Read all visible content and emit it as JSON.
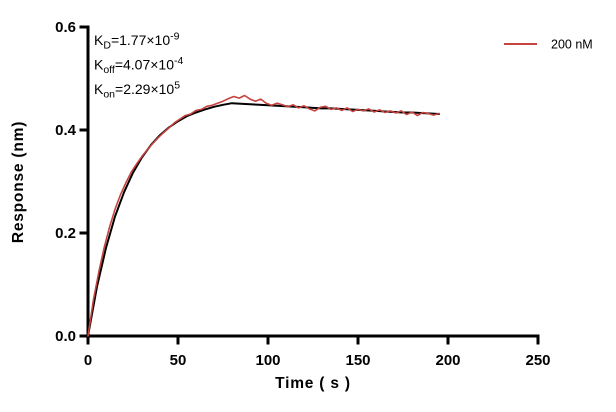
{
  "chart_data": {
    "type": "line",
    "title": "",
    "xlabel": "Time ( s )",
    "ylabel": "Response (nm)",
    "xlim": [
      0,
      250
    ],
    "ylim": [
      0,
      0.6
    ],
    "grid": false,
    "x_ticks": [
      0,
      50,
      100,
      150,
      200,
      250
    ],
    "x_tick_labels": [
      "0",
      "50",
      "100",
      "150",
      "200",
      "250"
    ],
    "y_ticks": [
      0,
      0.2,
      0.4,
      0.6
    ],
    "y_tick_labels": [
      "0.0",
      "0.2",
      "0.4",
      "0.6"
    ],
    "legend_position": "top-right",
    "legend": [
      {
        "label": "200 nM",
        "color": "#c5443f"
      }
    ],
    "kinetic_constants": {
      "KD": "1.77×10-9",
      "Koff": "4.07×10-4",
      "Kon": "2.29×105"
    },
    "annotations": [
      {
        "segments": [
          {
            "t": "K"
          },
          {
            "t": "D",
            "s": "sub"
          },
          {
            "t": "=1.77×10"
          },
          {
            "t": "-9",
            "s": "sup"
          }
        ]
      },
      {
        "segments": [
          {
            "t": "K"
          },
          {
            "t": "off",
            "s": "sub"
          },
          {
            "t": "=4.07×10"
          },
          {
            "t": "-4",
            "s": "sup"
          }
        ]
      },
      {
        "segments": [
          {
            "t": "K"
          },
          {
            "t": "on",
            "s": "sub"
          },
          {
            "t": "=2.29×10"
          },
          {
            "t": "5",
            "s": "sup"
          }
        ]
      }
    ],
    "series": [
      {
        "role": "fit",
        "label": "",
        "color": "#000000",
        "width": 2,
        "points": [
          [
            0,
            0
          ],
          [
            5,
            0.096
          ],
          [
            10,
            0.171
          ],
          [
            15,
            0.232
          ],
          [
            20,
            0.279
          ],
          [
            25,
            0.317
          ],
          [
            30,
            0.347
          ],
          [
            35,
            0.371
          ],
          [
            40,
            0.39
          ],
          [
            45,
            0.405
          ],
          [
            50,
            0.417
          ],
          [
            55,
            0.427
          ],
          [
            60,
            0.434
          ],
          [
            65,
            0.44
          ],
          [
            70,
            0.445
          ],
          [
            75,
            0.449
          ],
          [
            80,
            0.452
          ],
          [
            85,
            0.451
          ],
          [
            90,
            0.45
          ],
          [
            95,
            0.449
          ],
          [
            100,
            0.448
          ],
          [
            105,
            0.447
          ],
          [
            110,
            0.446
          ],
          [
            115,
            0.445
          ],
          [
            120,
            0.444
          ],
          [
            125,
            0.443
          ],
          [
            130,
            0.442
          ],
          [
            135,
            0.442
          ],
          [
            140,
            0.441
          ],
          [
            145,
            0.44
          ],
          [
            150,
            0.439
          ],
          [
            155,
            0.438
          ],
          [
            160,
            0.437
          ],
          [
            165,
            0.436
          ],
          [
            170,
            0.435
          ],
          [
            175,
            0.434
          ],
          [
            180,
            0.434
          ],
          [
            185,
            0.433
          ],
          [
            190,
            0.432
          ],
          [
            195,
            0.431
          ]
        ]
      },
      {
        "role": "data",
        "label": "200 nM",
        "color": "#c5443f",
        "width": 1.6,
        "points": [
          [
            0,
            0
          ],
          [
            3,
            0.07
          ],
          [
            6,
            0.124
          ],
          [
            9,
            0.172
          ],
          [
            12,
            0.212
          ],
          [
            15,
            0.246
          ],
          [
            18,
            0.274
          ],
          [
            21,
            0.297
          ],
          [
            24,
            0.318
          ],
          [
            27,
            0.334
          ],
          [
            30,
            0.349
          ],
          [
            33,
            0.362
          ],
          [
            36,
            0.374
          ],
          [
            39,
            0.385
          ],
          [
            42,
            0.395
          ],
          [
            45,
            0.404
          ],
          [
            48,
            0.414
          ],
          [
            51,
            0.421
          ],
          [
            54,
            0.428
          ],
          [
            57,
            0.431
          ],
          [
            60,
            0.438
          ],
          [
            63,
            0.44
          ],
          [
            66,
            0.446
          ],
          [
            69,
            0.448
          ],
          [
            72,
            0.452
          ],
          [
            75,
            0.456
          ],
          [
            78,
            0.461
          ],
          [
            81,
            0.465
          ],
          [
            84,
            0.462
          ],
          [
            87,
            0.467
          ],
          [
            90,
            0.46
          ],
          [
            93,
            0.456
          ],
          [
            96,
            0.46
          ],
          [
            99,
            0.452
          ],
          [
            102,
            0.448
          ],
          [
            105,
            0.452
          ],
          [
            108,
            0.449
          ],
          [
            111,
            0.445
          ],
          [
            114,
            0.449
          ],
          [
            117,
            0.443
          ],
          [
            120,
            0.447
          ],
          [
            123,
            0.441
          ],
          [
            126,
            0.437
          ],
          [
            129,
            0.444
          ],
          [
            132,
            0.446
          ],
          [
            135,
            0.44
          ],
          [
            138,
            0.443
          ],
          [
            141,
            0.438
          ],
          [
            144,
            0.443
          ],
          [
            147,
            0.436
          ],
          [
            150,
            0.44
          ],
          [
            153,
            0.437
          ],
          [
            156,
            0.441
          ],
          [
            159,
            0.435
          ],
          [
            162,
            0.439
          ],
          [
            165,
            0.434
          ],
          [
            168,
            0.437
          ],
          [
            171,
            0.433
          ],
          [
            174,
            0.437
          ],
          [
            177,
            0.43
          ],
          [
            180,
            0.435
          ],
          [
            183,
            0.428
          ],
          [
            186,
            0.434
          ],
          [
            189,
            0.432
          ],
          [
            192,
            0.429
          ],
          [
            195,
            0.432
          ]
        ]
      }
    ]
  }
}
